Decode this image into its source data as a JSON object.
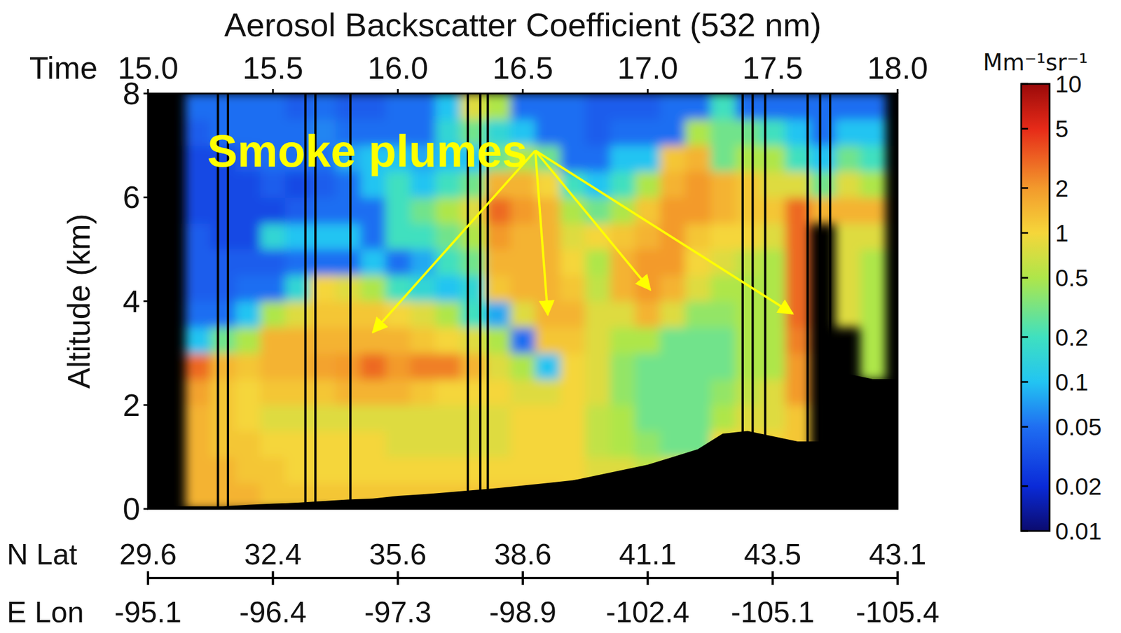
{
  "chart_data": {
    "type": "heatmap",
    "title": "Aerosol Backscatter Coefficient (532 nm)",
    "x_label": "Time",
    "y_label": "Altitude (km)",
    "xlim": [
      15,
      18
    ],
    "xticks": [
      {
        "value": 15,
        "label": "15.0"
      },
      15.5,
      {
        "value": 16,
        "label": "16.0"
      },
      16.5,
      {
        "value": 17,
        "label": "17.0"
      },
      17.5,
      {
        "value": 18,
        "label": "18.0"
      }
    ],
    "ylim": [
      0,
      8
    ],
    "yticks": [
      0,
      2,
      4,
      6,
      8
    ],
    "lat_label": "N Lat",
    "lat": [
      29.6,
      32.4,
      35.6,
      38.6,
      41.1,
      43.5,
      43.1
    ],
    "lon_label": "E Lon",
    "lon": [
      -95.1,
      -96.4,
      -97.3,
      -98.9,
      -102.4,
      -105.1,
      -105.4
    ],
    "x_bins": [
      15.15,
      15.25,
      15.35,
      15.45,
      15.55,
      15.65,
      15.75,
      15.85,
      15.95,
      16.05,
      16.15,
      16.25,
      16.35,
      16.45,
      16.55,
      16.65,
      16.75,
      16.85,
      16.95,
      17.05,
      17.15,
      17.25,
      17.35,
      17.45,
      17.55,
      17.65,
      17.75,
      17.85,
      17.95
    ],
    "y_bins": [
      0,
      0.5,
      1,
      1.5,
      2,
      2.5,
      3,
      3.5,
      4,
      4.5,
      5,
      5.5,
      6,
      6.5,
      7,
      7.5,
      8
    ],
    "values": [
      [
        1.5,
        1.5,
        1.5,
        1.5,
        1.8,
        3,
        0.1,
        0.05,
        0.04,
        0.04,
        0.04,
        0.03,
        0.03,
        0.03,
        0.04,
        0.05
      ],
      [
        1.5,
        1.5,
        1.2,
        1.2,
        1.2,
        1.5,
        0.3,
        0.05,
        0.04,
        0.04,
        0.03,
        0.03,
        0.03,
        0.03,
        0.05,
        0.05
      ],
      [
        1.5,
        1.2,
        1.2,
        1,
        1,
        1.2,
        0.5,
        0.1,
        0.05,
        0.04,
        0.03,
        0.03,
        0.03,
        0.04,
        0.05,
        0.05
      ],
      [
        1.2,
        1.2,
        1,
        0.8,
        1.2,
        1.5,
        1.5,
        0.5,
        0.05,
        0.04,
        0.15,
        0.03,
        0.04,
        0.05,
        0.05,
        0.05
      ],
      [
        1.2,
        1,
        1,
        0.8,
        1.2,
        1.5,
        1.5,
        0.8,
        0.15,
        0.05,
        0.1,
        0.04,
        0.03,
        0.05,
        0.05,
        0.04
      ],
      [
        1.2,
        1,
        1,
        0.8,
        1.2,
        1.8,
        1.5,
        1.2,
        1,
        0.05,
        0.1,
        0.05,
        0.04,
        0.05,
        0.06,
        0.05
      ],
      [
        1.2,
        1,
        1,
        0.8,
        1.5,
        2,
        1.5,
        1.2,
        0.8,
        0.05,
        0.1,
        0.05,
        0.05,
        0.08,
        0.05,
        0.04
      ],
      [
        1.2,
        1,
        1,
        0.8,
        1.5,
        3,
        1.5,
        1.2,
        0.5,
        0.1,
        0.05,
        0.05,
        0.1,
        0.1,
        0.05,
        0.04
      ],
      [
        1.2,
        1,
        0.8,
        0.8,
        1.5,
        2,
        1.5,
        1,
        0.2,
        0.05,
        0.2,
        0.2,
        0.2,
        0.1,
        0.05,
        0.05
      ],
      [
        1.2,
        1,
        0.8,
        0.8,
        1.2,
        2.5,
        1.2,
        0.8,
        0.15,
        0.08,
        0.2,
        0.3,
        0.1,
        0.08,
        0.05,
        0.05
      ],
      [
        1.2,
        1,
        0.8,
        0.8,
        1,
        2.5,
        1,
        0.5,
        0.1,
        0.2,
        0.3,
        0.5,
        0.2,
        0.1,
        0.15,
        0.1
      ],
      [
        1.2,
        1,
        0.8,
        0.8,
        1,
        1.5,
        0.8,
        0.2,
        0.15,
        0.3,
        0.5,
        0.8,
        0.3,
        0.1,
        0.3,
        0.8
      ],
      [
        1.2,
        1,
        0.8,
        0.8,
        1,
        0.8,
        0.5,
        0.08,
        1.2,
        1.5,
        2,
        3,
        1.5,
        0.3,
        0.15,
        0.5
      ],
      [
        1.2,
        1,
        1,
        1,
        0.8,
        0.5,
        0.05,
        0.8,
        1.5,
        1.5,
        1.5,
        2,
        1.5,
        0.5,
        0.1,
        0.05
      ],
      [
        1.2,
        1,
        1,
        1,
        0.8,
        0.1,
        1.2,
        1.5,
        1.5,
        1.5,
        1.5,
        1.5,
        1,
        0.3,
        0.05,
        0.05
      ],
      [
        1,
        1,
        1,
        1,
        1,
        1,
        1.2,
        1.5,
        1.2,
        1,
        0.8,
        0.5,
        0.2,
        0.05,
        0.05,
        0.05
      ],
      [
        1,
        0.8,
        0.6,
        0.6,
        0.8,
        0.8,
        0.8,
        0.8,
        0.6,
        0.5,
        1,
        0.3,
        0.1,
        0.05,
        0.04,
        0.04
      ],
      [
        0.8,
        0.8,
        0.5,
        0.5,
        0.4,
        0.4,
        0.5,
        0.8,
        1.5,
        1.5,
        1.2,
        0.5,
        0.2,
        0.1,
        0.05,
        0.04
      ],
      [
        0.8,
        0.6,
        0.4,
        0.3,
        0.3,
        0.3,
        0.5,
        1.5,
        2,
        2,
        1.5,
        1.2,
        0.5,
        0.1,
        0.05,
        0.04
      ],
      [
        0.8,
        0.8,
        0.3,
        0.3,
        0.3,
        0.3,
        0.3,
        0.8,
        1.5,
        2,
        2,
        2,
        1.5,
        1.2,
        0.05,
        0.05
      ],
      [
        0.8,
        0.8,
        0.3,
        0.3,
        0.3,
        0.3,
        0.3,
        0.4,
        0.8,
        1,
        1.2,
        2,
        2,
        1.5,
        0.5,
        0.05
      ],
      [
        1,
        1,
        1,
        0.5,
        0.4,
        0.3,
        0.3,
        0.4,
        0.5,
        0.8,
        1,
        1.5,
        1.5,
        0.3,
        0.3,
        0.2
      ],
      [
        1,
        1,
        1,
        0.8,
        0.6,
        0.5,
        0.5,
        0.5,
        0.5,
        0.6,
        1,
        1.2,
        1.2,
        0.5,
        0.3,
        0.05
      ],
      [
        1,
        1,
        1,
        0.8,
        0.8,
        0.5,
        0.5,
        0.5,
        0.5,
        0.5,
        0.8,
        1.2,
        0.8,
        0.5,
        0.2,
        0.05
      ],
      [
        1,
        1,
        1.2,
        1.2,
        2,
        2,
        2.5,
        3,
        3,
        3,
        3,
        3,
        0.8,
        0.2,
        0.1,
        0.05
      ],
      [
        null,
        null,
        null,
        null,
        null,
        null,
        null,
        null,
        null,
        null,
        null,
        1.5,
        0.3,
        0.1,
        0.05,
        0.05
      ],
      [
        null,
        null,
        null,
        null,
        null,
        null,
        null,
        0.8,
        0.8,
        0.8,
        0.8,
        1.5,
        0.8,
        0.3,
        0.1,
        0.05
      ],
      [
        null,
        null,
        null,
        null,
        null,
        0.5,
        0.5,
        0.5,
        0.5,
        0.5,
        0.8,
        1.5,
        0.5,
        0.2,
        0.1,
        0.05
      ]
    ],
    "ground": {
      "x": [
        15.2,
        15.3,
        15.4,
        15.5,
        15.6,
        15.7,
        15.8,
        15.9,
        16.0,
        16.1,
        16.2,
        16.3,
        16.4,
        16.5,
        16.6,
        16.7,
        16.8,
        16.9,
        17.0,
        17.1,
        17.2,
        17.3,
        17.4,
        17.5,
        17.6,
        17.7,
        17.8,
        17.9
      ],
      "altitude": [
        0.05,
        0.05,
        0.08,
        0.1,
        0.12,
        0.15,
        0.18,
        0.2,
        0.25,
        0.28,
        0.32,
        0.36,
        0.4,
        0.45,
        0.5,
        0.55,
        0.65,
        0.75,
        0.85,
        1.0,
        1.15,
        1.45,
        1.5,
        1.4,
        1.3,
        1.3,
        2.6,
        2.5
      ]
    },
    "no_data": [
      15.28,
      15.32,
      15.63,
      15.67,
      15.81,
      16.28,
      16.33,
      16.36,
      17.38,
      17.42,
      17.47,
      17.64,
      17.69,
      17.73
    ],
    "colorbar": {
      "label": "Mm⁻¹sr⁻¹",
      "log": true,
      "range": [
        0.01,
        10
      ],
      "ticks": [
        0.01,
        0.02,
        0.05,
        0.1,
        0.2,
        0.5,
        1,
        2,
        5,
        10
      ]
    },
    "annotations": [
      {
        "text": "Smoke plumes",
        "from": [
          16.55,
          6.9
        ],
        "to": [
          [
            15.9,
            3.4
          ],
          [
            16.6,
            3.74
          ],
          [
            17.01,
            4.22
          ],
          [
            17.58,
            3.76
          ]
        ]
      }
    ]
  }
}
